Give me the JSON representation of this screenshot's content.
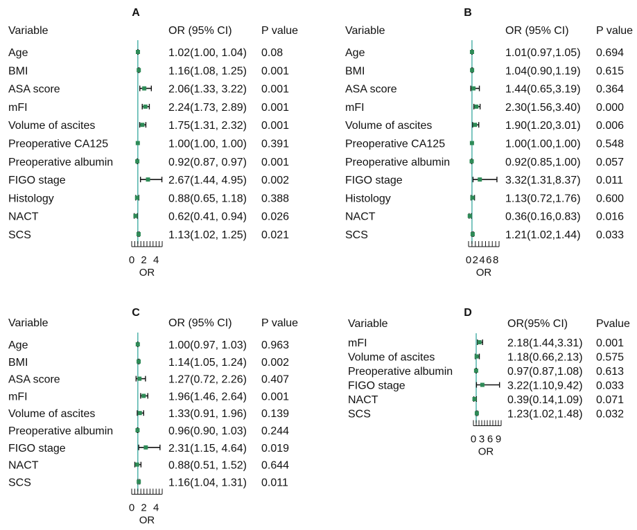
{
  "colors": {
    "point": "#2e8b57",
    "ref_line": "#5bb8b0",
    "ci": "#111111"
  },
  "chart_data": [
    {
      "type": "forest",
      "panel_label": "A",
      "headers": {
        "variable": "Variable",
        "or": "OR (95% CI)",
        "p": "P value"
      },
      "xlabel": "OR",
      "xlim": [
        0,
        5
      ],
      "tick_labels": [
        "0",
        "2",
        "4"
      ],
      "tick_values": [
        0,
        2,
        4
      ],
      "minor_tick_step": 0.5,
      "ref_value": 1,
      "rows": [
        {
          "variable": "Age",
          "or": 1.02,
          "lo": 1.0,
          "hi": 1.04,
          "or_text": "1.02(1.00, 1.04)",
          "p": "0.08"
        },
        {
          "variable": "BMI",
          "or": 1.16,
          "lo": 1.08,
          "hi": 1.25,
          "or_text": "1.16(1.08, 1.25)",
          "p": "0.001"
        },
        {
          "variable": "ASA score",
          "or": 2.06,
          "lo": 1.33,
          "hi": 3.22,
          "or_text": "2.06(1.33, 3.22)",
          "p": "0.001"
        },
        {
          "variable": "mFI",
          "or": 2.24,
          "lo": 1.73,
          "hi": 2.89,
          "or_text": "2.24(1.73, 2.89)",
          "p": "0.001"
        },
        {
          "variable": "Volume of ascites",
          "or": 1.75,
          "lo": 1.31,
          "hi": 2.32,
          "or_text": "1.75(1.31, 2.32)",
          "p": "0.001"
        },
        {
          "variable": "Preoperative CA125",
          "or": 1.0,
          "lo": 1.0,
          "hi": 1.0,
          "or_text": "1.00(1.00, 1.00)",
          "p": "0.391"
        },
        {
          "variable": "Preoperative albumin",
          "or": 0.92,
          "lo": 0.87,
          "hi": 0.97,
          "or_text": "0.92(0.87, 0.97)",
          "p": "0.001"
        },
        {
          "variable": "FIGO stage",
          "or": 2.67,
          "lo": 1.44,
          "hi": 4.95,
          "or_text": "2.67(1.44, 4.95)",
          "p": "0.002"
        },
        {
          "variable": "Histology",
          "or": 0.88,
          "lo": 0.65,
          "hi": 1.18,
          "or_text": "0.88(0.65, 1.18)",
          "p": "0.388"
        },
        {
          "variable": "NACT",
          "or": 0.62,
          "lo": 0.41,
          "hi": 0.94,
          "or_text": "0.62(0.41, 0.94)",
          "p": "0.026"
        },
        {
          "variable": "SCS",
          "or": 1.13,
          "lo": 1.02,
          "hi": 1.25,
          "or_text": "1.13(1.02, 1.25)",
          "p": "0.021"
        }
      ]
    },
    {
      "type": "forest",
      "panel_label": "B",
      "headers": {
        "variable": "Variable",
        "or": "OR (95% CI)",
        "p": "P value"
      },
      "xlabel": "OR",
      "xlim": [
        0,
        9
      ],
      "tick_labels": [
        "0",
        "2",
        "4",
        "6",
        "8"
      ],
      "tick_values": [
        0,
        2,
        4,
        6,
        8
      ],
      "minor_tick_step": 1,
      "ref_value": 1,
      "rows": [
        {
          "variable": "Age",
          "or": 1.01,
          "lo": 0.97,
          "hi": 1.05,
          "or_text": "1.01(0.97,1.05)",
          "p": "0.694"
        },
        {
          "variable": "BMI",
          "or": 1.04,
          "lo": 0.9,
          "hi": 1.19,
          "or_text": "1.04(0.90,1.19)",
          "p": "0.615"
        },
        {
          "variable": "ASA score",
          "or": 1.44,
          "lo": 0.65,
          "hi": 3.19,
          "or_text": "1.44(0.65,3.19)",
          "p": "0.364"
        },
        {
          "variable": "mFI",
          "or": 2.3,
          "lo": 1.56,
          "hi": 3.4,
          "or_text": "2.30(1.56,3.40)",
          "p": "0.000"
        },
        {
          "variable": "Volume of ascites",
          "or": 1.9,
          "lo": 1.2,
          "hi": 3.01,
          "or_text": "1.90(1.20,3.01)",
          "p": "0.006"
        },
        {
          "variable": "Preoperative CA125",
          "or": 1.0,
          "lo": 1.0,
          "hi": 1.0,
          "or_text": "1.00(1.00,1.00)",
          "p": "0.548"
        },
        {
          "variable": "Preoperative albumin",
          "or": 0.92,
          "lo": 0.85,
          "hi": 1.0,
          "or_text": "0.92(0.85,1.00)",
          "p": "0.057"
        },
        {
          "variable": "FIGO stage",
          "or": 3.32,
          "lo": 1.31,
          "hi": 8.37,
          "or_text": "3.32(1.31,8.37)",
          "p": "0.011"
        },
        {
          "variable": "Histology",
          "or": 1.13,
          "lo": 0.72,
          "hi": 1.76,
          "or_text": "1.13(0.72,1.76)",
          "p": "0.600"
        },
        {
          "variable": "NACT",
          "or": 0.36,
          "lo": 0.16,
          "hi": 0.83,
          "or_text": "0.36(0.16,0.83)",
          "p": "0.016"
        },
        {
          "variable": "SCS",
          "or": 1.21,
          "lo": 1.02,
          "hi": 1.44,
          "or_text": "1.21(1.02,1.44)",
          "p": "0.033"
        }
      ]
    },
    {
      "type": "forest",
      "panel_label": "C",
      "headers": {
        "variable": "Variable",
        "or": "OR (95% CI)",
        "p": "P value"
      },
      "xlabel": "OR",
      "xlim": [
        0,
        5
      ],
      "tick_labels": [
        "0",
        "2",
        "4"
      ],
      "tick_values": [
        0,
        2,
        4
      ],
      "minor_tick_step": 0.5,
      "ref_value": 1,
      "rows": [
        {
          "variable": "Age",
          "or": 1.0,
          "lo": 0.97,
          "hi": 1.03,
          "or_text": "1.00(0.97, 1.03)",
          "p": "0.963"
        },
        {
          "variable": "BMI",
          "or": 1.14,
          "lo": 1.05,
          "hi": 1.24,
          "or_text": "1.14(1.05, 1.24)",
          "p": "0.002"
        },
        {
          "variable": "ASA score",
          "or": 1.27,
          "lo": 0.72,
          "hi": 2.26,
          "or_text": "1.27(0.72, 2.26)",
          "p": "0.407"
        },
        {
          "variable": "mFI",
          "or": 1.96,
          "lo": 1.46,
          "hi": 2.64,
          "or_text": "1.96(1.46, 2.64)",
          "p": "0.001"
        },
        {
          "variable": "Volume of ascites",
          "or": 1.33,
          "lo": 0.91,
          "hi": 1.96,
          "or_text": "1.33(0.91, 1.96)",
          "p": "0.139"
        },
        {
          "variable": "Preoperative albumin",
          "or": 0.96,
          "lo": 0.9,
          "hi": 1.03,
          "or_text": "0.96(0.90, 1.03)",
          "p": "0.244"
        },
        {
          "variable": "FIGO stage",
          "or": 2.31,
          "lo": 1.15,
          "hi": 4.64,
          "or_text": "2.31(1.15, 4.64)",
          "p": "0.019"
        },
        {
          "variable": "NACT",
          "or": 0.88,
          "lo": 0.51,
          "hi": 1.52,
          "or_text": "0.88(0.51, 1.52)",
          "p": "0.644"
        },
        {
          "variable": "SCS",
          "or": 1.16,
          "lo": 1.04,
          "hi": 1.31,
          "or_text": "1.16(1.04, 1.31)",
          "p": "0.011"
        }
      ]
    },
    {
      "type": "forest",
      "panel_label": "D",
      "headers": {
        "variable": "Variable",
        "or": "OR(95% CI)",
        "p": "Pvalue"
      },
      "xlabel": "OR",
      "xlim": [
        0,
        10
      ],
      "tick_labels": [
        "0",
        "3",
        "6",
        "9"
      ],
      "tick_values": [
        0,
        3,
        6,
        9
      ],
      "minor_tick_step": 1,
      "ref_value": 1,
      "rows": [
        {
          "variable": "mFI",
          "or": 2.18,
          "lo": 1.44,
          "hi": 3.31,
          "or_text": "2.18(1.44,3.31)",
          "p": "0.001"
        },
        {
          "variable": "Volume of ascites",
          "or": 1.18,
          "lo": 0.66,
          "hi": 2.13,
          "or_text": "1.18(0.66,2.13)",
          "p": "0.575"
        },
        {
          "variable": "Preoperative albumin",
          "or": 0.97,
          "lo": 0.87,
          "hi": 1.08,
          "or_text": "0.97(0.87,1.08)",
          "p": "0.613"
        },
        {
          "variable": "FIGO stage",
          "or": 3.22,
          "lo": 1.1,
          "hi": 9.42,
          "or_text": "3.22(1.10,9.42)",
          "p": "0.033"
        },
        {
          "variable": "NACT",
          "or": 0.39,
          "lo": 0.14,
          "hi": 1.09,
          "or_text": "0.39(0.14,1.09)",
          "p": "0.071"
        },
        {
          "variable": "SCS",
          "or": 1.23,
          "lo": 1.02,
          "hi": 1.48,
          "or_text": "1.23(1.02,1.48)",
          "p": "0.032"
        }
      ]
    }
  ]
}
